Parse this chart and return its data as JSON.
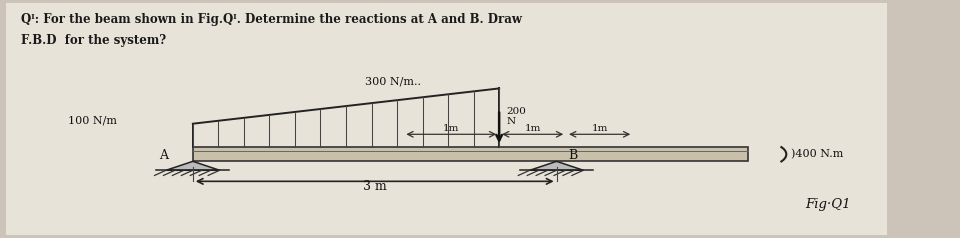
{
  "bg_color": "#ccc4b8",
  "paper_color": "#e8e3d8",
  "title_line1": "Qᴵ: For the beam shown in Fig.Qᴵ. Determine the reactions at A and B. Draw",
  "title_line2": "F.B.D  for the system?",
  "label_300": "300 N/m..",
  "label_100": "100 N/m",
  "label_200N": "200\nN",
  "label_1m_1": "1m",
  "label_1m_2": "1m",
  "label_1m_3": "1m",
  "label_400Nm": ")400 N.m",
  "label_3m": "3 m",
  "label_figQ1": "Fig·Q1",
  "label_A": "A",
  "label_B": "B"
}
